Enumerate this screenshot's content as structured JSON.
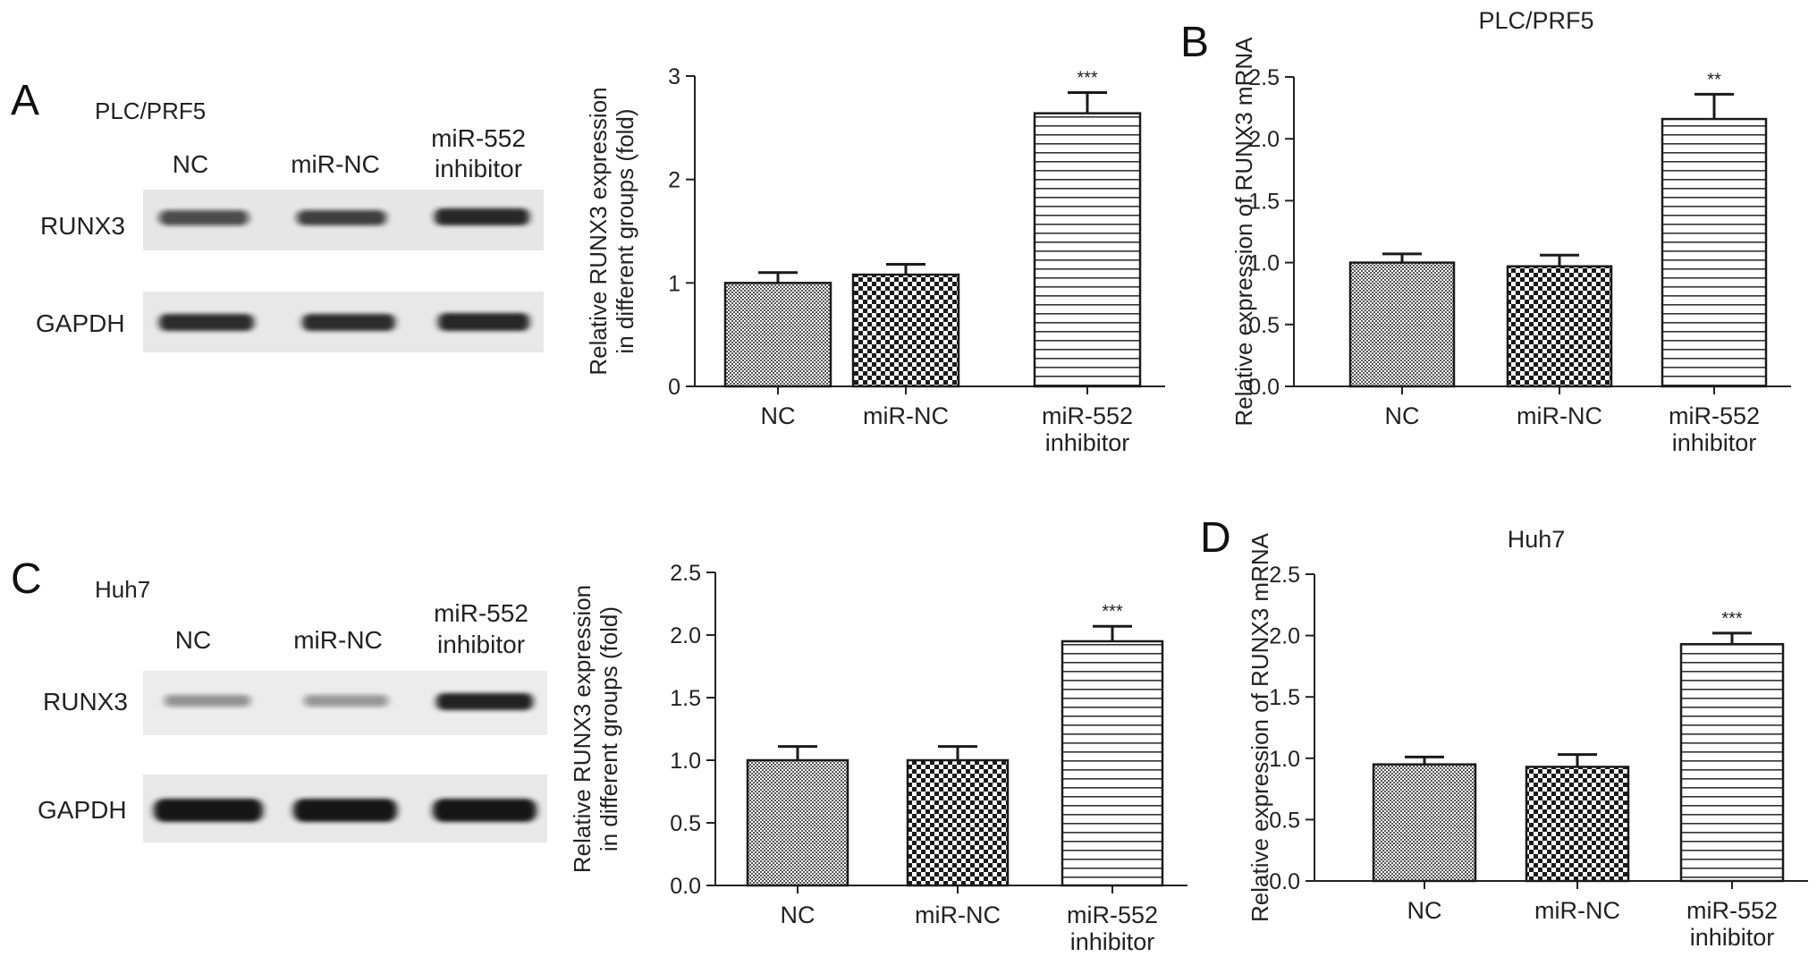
{
  "panels": {
    "A": {
      "letter": "A",
      "cell_line": "PLC/PRF5",
      "lanes": [
        "NC",
        "miR-NC",
        "miR-552",
        "inhibitor"
      ],
      "bands": [
        "RUNX3",
        "GAPDH"
      ]
    },
    "C": {
      "letter": "C",
      "cell_line": "Huh7",
      "lanes": [
        "NC",
        "miR-NC",
        "miR-552",
        "inhibitor"
      ],
      "bands": [
        "RUNX3",
        "GAPDH"
      ]
    },
    "B": {
      "letter": "B"
    },
    "D": {
      "letter": "D"
    }
  },
  "blot_intensity": {
    "A": {
      "RUNX3": [
        0.72,
        0.78,
        0.92
      ],
      "GAPDH": [
        0.9,
        0.9,
        0.92
      ]
    },
    "C": {
      "RUNX3": [
        0.42,
        0.4,
        0.95
      ],
      "GAPDH": [
        1.0,
        1.0,
        1.0
      ]
    }
  },
  "chart_data": [
    {
      "id": "A-bar",
      "type": "bar",
      "title": "",
      "ylabel": [
        "Relative RUNX3 expression",
        "in different groups (fold)"
      ],
      "categories": [
        [
          "NC"
        ],
        [
          "miR-NC"
        ],
        [
          "miR-552",
          "inhibitor"
        ]
      ],
      "values": [
        1.0,
        1.08,
        2.64
      ],
      "errors": [
        0.1,
        0.1,
        0.2
      ],
      "significance": [
        "",
        "",
        "***"
      ],
      "ylim": [
        0,
        3
      ],
      "yticks": [
        0,
        1,
        2,
        3
      ],
      "tick_labels": [
        "0",
        "1",
        "2",
        "3"
      ],
      "patterns": [
        "dense",
        "check",
        "stripe"
      ]
    },
    {
      "id": "B-bar",
      "type": "bar",
      "title": "PLC/PRF5",
      "ylabel": [
        "Relative expression of RUNX3 mRNA"
      ],
      "categories": [
        [
          "NC"
        ],
        [
          "miR-NC"
        ],
        [
          "miR-552",
          "inhibitor"
        ]
      ],
      "values": [
        1.0,
        0.97,
        2.16
      ],
      "errors": [
        0.07,
        0.09,
        0.2
      ],
      "significance": [
        "",
        "",
        "**"
      ],
      "ylim": [
        0,
        2.5
      ],
      "yticks": [
        0,
        0.5,
        1.0,
        1.5,
        2.0,
        2.5
      ],
      "tick_labels": [
        "0.0",
        "0.5",
        "1.0",
        "1.5",
        "2.0",
        "2.5"
      ],
      "patterns": [
        "dense",
        "check",
        "stripe"
      ]
    },
    {
      "id": "C-bar",
      "type": "bar",
      "title": "",
      "ylabel": [
        "Relative RUNX3 expression",
        "in different groups (fold)"
      ],
      "categories": [
        [
          "NC"
        ],
        [
          "miR-NC"
        ],
        [
          "miR-552",
          "inhibitor"
        ]
      ],
      "values": [
        1.0,
        1.0,
        1.95
      ],
      "errors": [
        0.11,
        0.11,
        0.12
      ],
      "significance": [
        "",
        "",
        "***"
      ],
      "ylim": [
        0,
        2.5
      ],
      "yticks": [
        0,
        0.5,
        1.0,
        1.5,
        2.0,
        2.5
      ],
      "tick_labels": [
        "0.0",
        "0.5",
        "1.0",
        "1.5",
        "2.0",
        "2.5"
      ],
      "patterns": [
        "dense",
        "check",
        "stripe"
      ]
    },
    {
      "id": "D-bar",
      "type": "bar",
      "title": "Huh7",
      "ylabel": [
        "Relative expression of RUNX3 mRNA"
      ],
      "categories": [
        [
          "NC"
        ],
        [
          "miR-NC"
        ],
        [
          "miR-552",
          "inhibitor"
        ]
      ],
      "values": [
        0.95,
        0.93,
        1.93
      ],
      "errors": [
        0.06,
        0.1,
        0.09
      ],
      "significance": [
        "",
        "",
        "***"
      ],
      "ylim": [
        0,
        2.5
      ],
      "yticks": [
        0,
        0.5,
        1.0,
        1.5,
        2.0,
        2.5
      ],
      "tick_labels": [
        "0.0",
        "0.5",
        "1.0",
        "1.5",
        "2.0",
        "2.5"
      ],
      "patterns": [
        "dense",
        "check",
        "stripe"
      ]
    }
  ]
}
